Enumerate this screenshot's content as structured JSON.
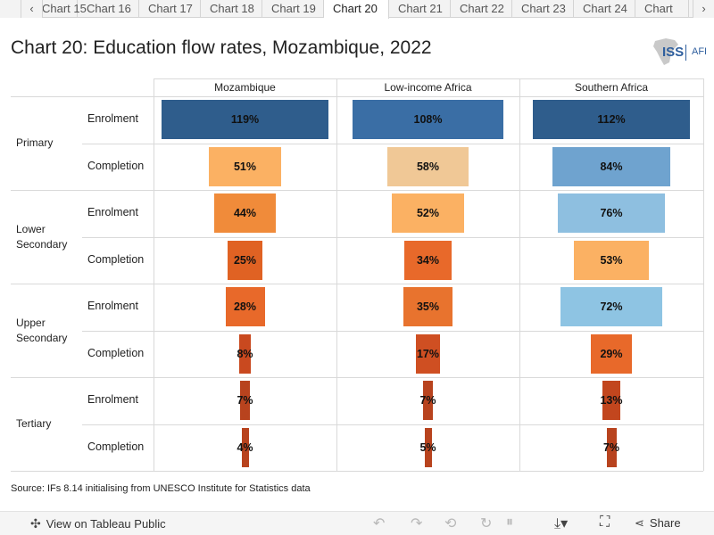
{
  "tabs": {
    "items": [
      "Chart 15",
      "Chart 16",
      "Chart 17",
      "Chart 18",
      "Chart 19",
      "Chart 20",
      "Chart 21",
      "Chart 22",
      "Chart 23",
      "Chart 24",
      "Chart"
    ],
    "active": "Chart 20",
    "left_arrow": "‹",
    "right_arrow": "›"
  },
  "header": {
    "title": "Chart 20: Education flow rates, Mozambique, 2022",
    "logo_text": "ISS",
    "logo_sub": "AFI"
  },
  "chart_data": {
    "type": "bar",
    "title": "Chart 20: Education flow rates, Mozambique, 2022",
    "columns": [
      "Mozambique",
      "Low-income Africa",
      "Southern Africa"
    ],
    "levels": [
      "Primary",
      "Lower Secondary",
      "Upper Secondary",
      "Tertiary"
    ],
    "rows": [
      {
        "level": "Primary",
        "metric": "Enrolment"
      },
      {
        "level": "Primary",
        "metric": "Completion"
      },
      {
        "level": "Lower Secondary",
        "metric": "Enrolment"
      },
      {
        "level": "Lower Secondary",
        "metric": "Completion"
      },
      {
        "level": "Upper Secondary",
        "metric": "Enrolment"
      },
      {
        "level": "Upper Secondary",
        "metric": "Completion"
      },
      {
        "level": "Tertiary",
        "metric": "Enrolment"
      },
      {
        "level": "Tertiary",
        "metric": "Completion"
      }
    ],
    "series": [
      {
        "values": [
          119,
          51,
          44,
          25,
          28,
          8,
          7,
          4
        ],
        "labels": [
          "119%",
          "51%",
          "44%",
          "25%",
          "28%",
          "8%",
          "7%",
          "4%"
        ]
      },
      {
        "values": [
          108,
          58,
          52,
          34,
          35,
          17,
          7,
          5
        ],
        "labels": [
          "108%",
          "58%",
          "52%",
          "34%",
          "35%",
          "17%",
          "7%",
          "5%"
        ]
      },
      {
        "values": [
          112,
          84,
          76,
          53,
          72,
          29,
          13,
          7
        ],
        "labels": [
          "112%",
          "84%",
          "76%",
          "53%",
          "72%",
          "29%",
          "13%",
          "7%"
        ]
      }
    ],
    "colors": [
      [
        "#2f5d8c",
        "#fbb163",
        "#f08b3a",
        "#e06223",
        "#e8692a",
        "#c9491f",
        "#b8431e",
        "#b8431e"
      ],
      [
        "#3a6ea5",
        "#f0c896",
        "#fbb163",
        "#e8692a",
        "#e8732e",
        "#cf4f22",
        "#b8431e",
        "#b8431e"
      ],
      [
        "#2f5d8c",
        "#6fa3cf",
        "#8ebfe0",
        "#fbb163",
        "#8ec4e3",
        "#e8692a",
        "#c2461e",
        "#b8431e"
      ]
    ],
    "value_unit": "%",
    "grid": true
  },
  "source": "Source: IFs 8.14 initialising from UNESCO Institute for Statistics data",
  "toolbar": {
    "view_public": "View on Tableau Public",
    "share": "Share"
  }
}
